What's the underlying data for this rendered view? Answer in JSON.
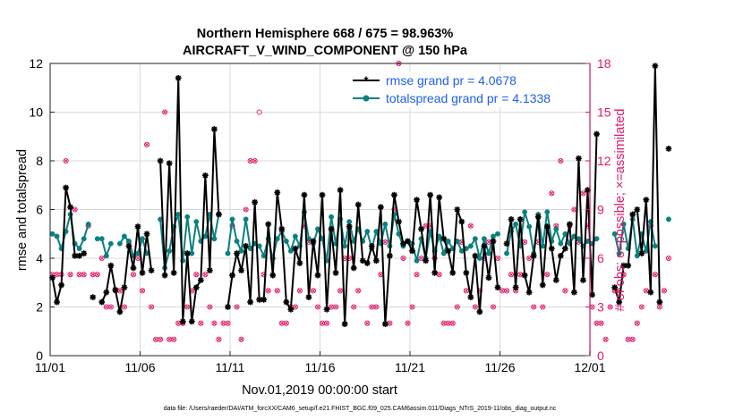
{
  "chart_data": {
    "type": "line",
    "title_line1": "Northern Hemisphere 668 / 675 = 98.963%",
    "title_line2": "AIRCRAFT_V_WIND_COMPONENT @ 150 hPa",
    "xlabel": "Nov.01,2019 00:00:00 start",
    "ylabel": "rmse and totalspread",
    "ylabel_right": "# of obs: o=possible; ×=assimilated",
    "footer": "data file: /Users/raeder/DAI/ATM_forcXX/CAM6_setup/f.e21.FHIST_BGC.f09_025.CAM6assim.011/Diags_NTrS_2019-11/obs_diag_output.nc",
    "x_range": [
      0,
      30
    ],
    "ylim": [
      0,
      12
    ],
    "ylim_right": [
      0,
      18
    ],
    "x_tick_values": [
      0,
      5,
      10,
      15,
      20,
      25,
      30
    ],
    "x_tick_labels": [
      "11/01",
      "11/06",
      "11/11",
      "11/16",
      "11/21",
      "11/26",
      "12/01"
    ],
    "y_ticks": [
      0,
      2,
      4,
      6,
      8,
      10,
      12
    ],
    "y_ticks_right": [
      0,
      3,
      6,
      9,
      12,
      15,
      18
    ],
    "step_days": 0.25,
    "colors": {
      "rmse": "#000000",
      "spread": "#0a8080",
      "obs": "#e0186a",
      "axis_right": "#c0195c",
      "legend_text": "#1f5fe8"
    },
    "series": [
      {
        "name": "rmse grand pr = 4.0678",
        "key": "rmse",
        "values": [
          3.2,
          2.2,
          2.9,
          6.9,
          6.1,
          4.1,
          4.1,
          4.2,
          null,
          2.4,
          null,
          2.2,
          2.6,
          3.7,
          2.7,
          1.8,
          2.8,
          4.5,
          3.6,
          5.3,
          3.4,
          5.0,
          3.5,
          null,
          8.0,
          3.3,
          7.9,
          3.4,
          11.4,
          1.4,
          4.2,
          1.4,
          2.8,
          3.1,
          7.4,
          3.5,
          9.3,
          5.8,
          null,
          2.0,
          3.3,
          4.2,
          3.5,
          4.5,
          2.2,
          6.3,
          2.3,
          2.3,
          5.4,
          3.3,
          6.7,
          5.2,
          2.2,
          1.9,
          4.4,
          3.8,
          6.6,
          2.4,
          4.7,
          3.3,
          6.6,
          1.9,
          5.2,
          3.4,
          6.8,
          1.3,
          5.3,
          3.6,
          6.2,
          3.9,
          3.8,
          4.5,
          3.9,
          6.1,
          1.3,
          4.1,
          6.6,
          5.5,
          4.6,
          4.7,
          4.3,
          6.4,
          5.2,
          3.9,
          6.6,
          3.4,
          6.5,
          4.8,
          4.3,
          3.4,
          6.0,
          5.5,
          3.4,
          2.4,
          4.1,
          1.8,
          4.5,
          3.2,
          4.7,
          2.8,
          null,
          4.6,
          5.6,
          2.8,
          5.6,
          3.3,
          2.6,
          4.1,
          5.7,
          2.9,
          5.3,
          4.4,
          3.1,
          4.1,
          4.4,
          5.4,
          2.6,
          8.1,
          3.1,
          6.8,
          2.5,
          9.1,
          null,
          null,
          null,
          2.8,
          2.2,
          3.7,
          3.7,
          5.8,
          6.0,
          4.2,
          6.4,
          2.6,
          11.9,
          2.2,
          null,
          8.5
        ]
      },
      {
        "name": "totalspread grand pr = 4.1338",
        "key": "spread",
        "values": [
          5.0,
          4.9,
          4.4,
          5.1,
          5.8,
          4.6,
          4.4,
          4.8,
          5.4,
          null,
          4.8,
          4.8,
          4.1,
          4.6,
          null,
          4.6,
          4.9,
          4.7,
          4.1,
          4.2,
          4.8,
          4.2,
          null,
          null,
          5.6,
          3.6,
          4.3,
          5.3,
          5.8,
          3.9,
          5.7,
          4.2,
          5.5,
          4.7,
          4.9,
          5.8,
          4.8,
          5.8,
          null,
          4.2,
          5.6,
          4.7,
          4.3,
          5.6,
          4.4,
          4.6,
          4.5,
          4.1,
          4.8,
          4.0,
          4.8,
          5.1,
          4.7,
          4.3,
          4.9,
          4.5,
          5.9,
          4.8,
          4.6,
          5.2,
          4.8,
          3.9,
          5.7,
          4.6,
          5.6,
          4.5,
          5.5,
          4.7,
          5.2,
          4.7,
          5.1,
          4.4,
          5.1,
          4.6,
          5.4,
          4.5,
          5.8,
          5.0,
          4.5,
          4.7,
          4.6,
          3.9,
          4.8,
          4.0,
          5.1,
          4.3,
          4.9,
          4.2,
          4.7,
          4.4,
          4.7,
          4.3,
          4.4,
          4.5,
          4.8,
          4.0,
          4.8,
          4.2,
          4.9,
          5.0,
          null,
          4.2,
          5.1,
          5.4,
          4.5,
          5.9,
          5.3,
          4.2,
          5.8,
          4.5,
          5.9,
          4.7,
          5.2,
          4.6,
          5.0,
          4.6,
          4.9,
          4.8,
          4.5,
          4.7,
          4.6,
          4.8,
          null,
          null,
          null,
          5.0,
          4.2,
          5.4,
          4.4,
          5.6,
          4.1,
          5.0,
          4.3,
          5.5,
          4.5,
          null,
          null,
          5.6
        ]
      }
    ],
    "possible_obs": [
      5,
      5,
      5,
      12,
      5,
      9,
      5,
      5,
      8,
      5,
      5,
      6,
      3,
      3,
      4,
      4,
      3,
      7,
      5,
      6,
      4,
      13,
      3,
      1,
      1,
      15,
      1,
      1,
      2,
      2,
      3,
      4,
      5,
      2,
      5,
      3,
      2,
      1,
      2,
      2,
      8,
      3,
      1,
      9,
      12,
      12,
      15,
      5,
      4,
      6,
      4,
      2,
      2,
      3,
      3,
      4,
      8,
      7,
      4,
      3,
      2,
      2,
      3,
      3,
      4,
      6,
      6,
      3,
      4,
      17,
      2,
      3,
      3,
      5,
      7,
      2,
      9,
      18,
      6,
      2,
      3,
      5,
      6,
      8,
      8,
      6,
      5,
      2,
      2,
      2,
      3,
      7,
      4,
      8,
      3,
      4,
      6,
      7,
      3,
      6,
      4,
      4,
      5,
      4,
      5,
      7,
      6,
      3,
      7,
      3,
      5,
      10,
      8,
      12,
      4,
      8,
      9,
      7,
      10,
      8,
      3,
      2,
      2,
      1,
      3,
      4,
      4,
      5,
      1,
      1,
      2,
      3,
      4,
      8,
      5,
      3,
      4,
      6
    ],
    "assimilated_obs": [
      5,
      5,
      5,
      12,
      5,
      9,
      5,
      5,
      8,
      5,
      5,
      6,
      3,
      3,
      4,
      4,
      3,
      7,
      5,
      6,
      4,
      13,
      3,
      1,
      1,
      15,
      1,
      1,
      2,
      2,
      3,
      4,
      5,
      2,
      5,
      3,
      2,
      1,
      2,
      2,
      8,
      3,
      1,
      9,
      12,
      12,
      null,
      5,
      4,
      6,
      4,
      2,
      2,
      3,
      3,
      4,
      8,
      7,
      4,
      3,
      2,
      2,
      3,
      3,
      4,
      6,
      6,
      3,
      4,
      17,
      2,
      3,
      3,
      5,
      7,
      2,
      9,
      18,
      6,
      2,
      3,
      5,
      6,
      8,
      8,
      6,
      5,
      2,
      2,
      2,
      3,
      7,
      4,
      8,
      3,
      4,
      6,
      7,
      3,
      6,
      4,
      4,
      5,
      4,
      5,
      7,
      6,
      3,
      7,
      3,
      5,
      10,
      8,
      12,
      4,
      8,
      9,
      7,
      10,
      8,
      3,
      2,
      2,
      1,
      3,
      4,
      4,
      5,
      1,
      1,
      2,
      3,
      4,
      null,
      5,
      3,
      4,
      6
    ]
  }
}
